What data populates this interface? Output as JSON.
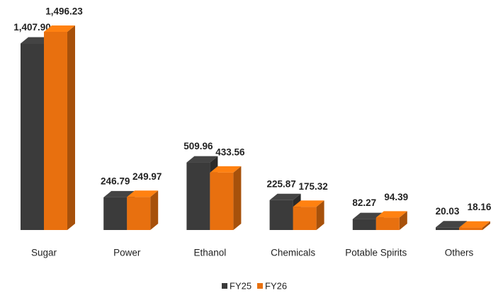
{
  "chart_data": {
    "type": "bar",
    "categories": [
      "Sugar",
      "Power",
      "Ethanol",
      "Chemicals",
      "Potable Spirits",
      "Others"
    ],
    "series": [
      {
        "name": "FY25",
        "color": "#3b3b3b",
        "values": [
          1407.9,
          246.79,
          509.96,
          225.87,
          82.27,
          20.03
        ],
        "value_labels": [
          "1,407.90",
          "246.79",
          "509.96",
          "225.87",
          "82.27",
          "20.03"
        ]
      },
      {
        "name": "FY26",
        "color": "#e8700f",
        "values": [
          1496.23,
          249.97,
          433.56,
          175.32,
          94.39,
          18.16
        ],
        "value_labels": [
          "1,496.23",
          "249.97",
          "433.56",
          "175.32",
          "94.39",
          "18.16"
        ]
      }
    ]
  }
}
